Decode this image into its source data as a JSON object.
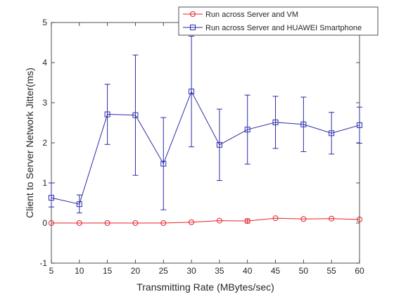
{
  "chart_data": {
    "type": "line",
    "title": "",
    "xlabel": "Transmitting Rate (MBytes/sec)",
    "ylabel": "Client to Server Network Jitter(ms)",
    "xlim": [
      5,
      60
    ],
    "ylim": [
      -1,
      5
    ],
    "xticks": [
      5,
      10,
      15,
      20,
      25,
      30,
      35,
      40,
      45,
      50,
      55,
      60
    ],
    "yticks": [
      -1,
      0,
      1,
      2,
      3,
      4,
      5
    ],
    "grid": false,
    "legend_position": "top-right",
    "x": [
      5,
      10,
      15,
      20,
      25,
      30,
      35,
      40,
      45,
      50,
      55,
      60
    ],
    "series": [
      {
        "name": "Run across Server and VM",
        "color": "#e3242b",
        "marker": "circle",
        "values": [
          0.0,
          0.0,
          0.0,
          0.0,
          0.0,
          0.02,
          0.06,
          0.05,
          0.12,
          0.1,
          0.11,
          0.09
        ],
        "err_low": [
          0.0,
          0.0,
          0.0,
          0.0,
          0.0,
          0.0,
          0.0,
          0.05,
          0.0,
          0.0,
          0.0,
          0.0
        ],
        "err_high": [
          0.0,
          0.0,
          0.0,
          0.0,
          0.0,
          0.0,
          0.0,
          0.05,
          0.0,
          0.0,
          0.0,
          0.0
        ]
      },
      {
        "name": "Run across Server and HUAWEI Smartphone",
        "color": "#2a2aab",
        "marker": "square",
        "values": [
          0.63,
          0.47,
          2.71,
          2.69,
          1.48,
          3.28,
          1.95,
          2.33,
          2.51,
          2.46,
          2.24,
          2.44
        ],
        "err_low": [
          0.23,
          0.22,
          0.75,
          1.5,
          1.15,
          1.38,
          0.89,
          0.86,
          0.65,
          0.68,
          0.52,
          0.45
        ],
        "err_high": [
          0.37,
          0.23,
          0.75,
          1.5,
          1.15,
          1.38,
          0.89,
          0.86,
          0.65,
          0.68,
          0.52,
          0.45
        ]
      }
    ]
  }
}
